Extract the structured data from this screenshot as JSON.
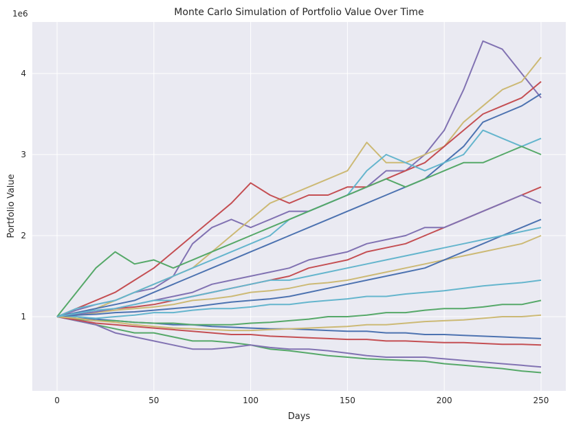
{
  "chart_data": {
    "type": "line",
    "title": "Monte Carlo Simulation of Portfolio Value Over Time",
    "xlabel": "Days",
    "ylabel": "Portfolio Value",
    "y_offset_label": "1e6",
    "xlim": [
      -12.8,
      262.8
    ],
    "ylim": [
      0.085,
      4.636
    ],
    "x_ticks": [
      0,
      50,
      100,
      150,
      200,
      250
    ],
    "y_ticks": [
      1,
      2,
      3,
      4
    ],
    "grid": true,
    "legend": "none",
    "background": "#eaeaf2",
    "palette": [
      "#4C72B0",
      "#55A868",
      "#C44E52",
      "#8172B2",
      "#CCB974",
      "#64B5CD"
    ],
    "x": [
      0,
      10,
      20,
      30,
      40,
      50,
      60,
      70,
      80,
      90,
      100,
      110,
      120,
      130,
      140,
      150,
      160,
      170,
      180,
      190,
      200,
      210,
      220,
      230,
      240,
      250
    ],
    "note_units": "values in millions (1e6)",
    "series": [
      {
        "color": "#8172B2",
        "values": [
          1.0,
          1.08,
          1.15,
          1.2,
          1.3,
          1.35,
          1.5,
          1.9,
          2.1,
          2.2,
          2.1,
          2.2,
          2.3,
          2.3,
          2.4,
          2.5,
          2.6,
          2.8,
          2.8,
          3.0,
          3.3,
          3.8,
          4.4,
          4.3,
          4.0,
          3.7
        ]
      },
      {
        "color": "#CCB974",
        "values": [
          1.0,
          1.05,
          1.1,
          1.2,
          1.3,
          1.4,
          1.5,
          1.6,
          1.8,
          2.0,
          2.2,
          2.4,
          2.5,
          2.6,
          2.7,
          2.8,
          3.15,
          2.9,
          2.9,
          3.0,
          3.1,
          3.4,
          3.6,
          3.8,
          3.9,
          4.2
        ]
      },
      {
        "color": "#C44E52",
        "values": [
          1.0,
          1.1,
          1.2,
          1.3,
          1.45,
          1.6,
          1.8,
          2.0,
          2.2,
          2.4,
          2.65,
          2.5,
          2.4,
          2.5,
          2.5,
          2.6,
          2.6,
          2.7,
          2.8,
          2.9,
          3.1,
          3.3,
          3.5,
          3.6,
          3.7,
          3.9
        ]
      },
      {
        "color": "#4C72B0",
        "values": [
          1.0,
          1.05,
          1.1,
          1.15,
          1.2,
          1.3,
          1.4,
          1.5,
          1.6,
          1.7,
          1.8,
          1.9,
          2.0,
          2.1,
          2.2,
          2.3,
          2.4,
          2.5,
          2.6,
          2.7,
          2.9,
          3.1,
          3.4,
          3.5,
          3.6,
          3.75
        ]
      },
      {
        "color": "#64B5CD",
        "values": [
          1.0,
          1.1,
          1.15,
          1.2,
          1.3,
          1.4,
          1.5,
          1.6,
          1.7,
          1.8,
          1.9,
          2.0,
          2.2,
          2.3,
          2.4,
          2.5,
          2.8,
          3.0,
          2.9,
          2.8,
          2.9,
          3.0,
          3.3,
          3.2,
          3.1,
          3.2
        ]
      },
      {
        "color": "#55A868",
        "values": [
          1.0,
          1.3,
          1.6,
          1.8,
          1.65,
          1.7,
          1.6,
          1.7,
          1.8,
          1.9,
          2.0,
          2.1,
          2.2,
          2.3,
          2.4,
          2.5,
          2.6,
          2.7,
          2.6,
          2.7,
          2.8,
          2.9,
          2.9,
          3.0,
          3.1,
          3.0
        ]
      },
      {
        "color": "#55A868",
        "values": [
          1.0,
          0.95,
          0.9,
          0.85,
          0.8,
          0.8,
          0.75,
          0.7,
          0.7,
          0.68,
          0.65,
          0.6,
          0.58,
          0.55,
          0.52,
          0.5,
          0.48,
          0.47,
          0.46,
          0.45,
          0.42,
          0.4,
          0.38,
          0.36,
          0.33,
          0.31
        ]
      },
      {
        "color": "#8172B2",
        "values": [
          1.0,
          0.95,
          0.9,
          0.8,
          0.75,
          0.7,
          0.65,
          0.6,
          0.6,
          0.62,
          0.65,
          0.62,
          0.6,
          0.6,
          0.58,
          0.55,
          0.52,
          0.5,
          0.5,
          0.5,
          0.48,
          0.46,
          0.44,
          0.42,
          0.4,
          0.38
        ]
      },
      {
        "color": "#C44E52",
        "values": [
          1.0,
          1.02,
          1.05,
          1.1,
          1.12,
          1.15,
          1.2,
          1.25,
          1.3,
          1.35,
          1.4,
          1.45,
          1.5,
          1.6,
          1.65,
          1.7,
          1.8,
          1.85,
          1.9,
          2.0,
          2.1,
          2.2,
          2.3,
          2.4,
          2.5,
          2.6
        ]
      },
      {
        "color": "#4C72B0",
        "values": [
          1.0,
          0.98,
          0.97,
          0.95,
          0.93,
          0.92,
          0.9,
          0.9,
          0.88,
          0.87,
          0.86,
          0.85,
          0.85,
          0.84,
          0.83,
          0.82,
          0.82,
          0.8,
          0.8,
          0.78,
          0.78,
          0.77,
          0.76,
          0.75,
          0.74,
          0.73
        ]
      },
      {
        "color": "#CCB974",
        "values": [
          1.0,
          1.02,
          1.05,
          1.08,
          1.1,
          1.12,
          1.15,
          1.2,
          1.22,
          1.25,
          1.3,
          1.32,
          1.35,
          1.4,
          1.42,
          1.45,
          1.5,
          1.55,
          1.6,
          1.65,
          1.7,
          1.75,
          1.8,
          1.85,
          1.9,
          2.0
        ]
      },
      {
        "color": "#64B5CD",
        "values": [
          1.0,
          1.0,
          0.98,
          1.0,
          1.02,
          1.05,
          1.05,
          1.08,
          1.1,
          1.1,
          1.12,
          1.15,
          1.15,
          1.18,
          1.2,
          1.22,
          1.25,
          1.25,
          1.28,
          1.3,
          1.32,
          1.35,
          1.38,
          1.4,
          1.42,
          1.45
        ]
      },
      {
        "color": "#8172B2",
        "values": [
          1.0,
          1.03,
          1.06,
          1.1,
          1.15,
          1.2,
          1.25,
          1.3,
          1.4,
          1.45,
          1.5,
          1.55,
          1.6,
          1.7,
          1.75,
          1.8,
          1.9,
          1.95,
          2.0,
          2.1,
          2.1,
          2.2,
          2.3,
          2.4,
          2.5,
          2.4
        ]
      },
      {
        "color": "#55A868",
        "values": [
          1.0,
          0.97,
          0.95,
          0.95,
          0.93,
          0.92,
          0.92,
          0.9,
          0.9,
          0.9,
          0.92,
          0.93,
          0.95,
          0.97,
          1.0,
          1.0,
          1.02,
          1.05,
          1.05,
          1.08,
          1.1,
          1.1,
          1.12,
          1.15,
          1.15,
          1.2
        ]
      },
      {
        "color": "#C44E52",
        "values": [
          1.0,
          0.96,
          0.92,
          0.9,
          0.88,
          0.86,
          0.84,
          0.82,
          0.8,
          0.78,
          0.78,
          0.76,
          0.75,
          0.74,
          0.73,
          0.72,
          0.72,
          0.7,
          0.7,
          0.69,
          0.68,
          0.68,
          0.67,
          0.66,
          0.66,
          0.65
        ]
      },
      {
        "color": "#4C72B0",
        "values": [
          1.0,
          1.02,
          1.03,
          1.05,
          1.06,
          1.08,
          1.1,
          1.12,
          1.15,
          1.18,
          1.2,
          1.22,
          1.25,
          1.3,
          1.35,
          1.4,
          1.45,
          1.5,
          1.55,
          1.6,
          1.7,
          1.8,
          1.9,
          2.0,
          2.1,
          2.2
        ]
      },
      {
        "color": "#CCB974",
        "values": [
          1.0,
          0.98,
          0.95,
          0.93,
          0.9,
          0.88,
          0.86,
          0.85,
          0.84,
          0.83,
          0.83,
          0.84,
          0.85,
          0.86,
          0.87,
          0.88,
          0.9,
          0.9,
          0.92,
          0.94,
          0.95,
          0.96,
          0.98,
          1.0,
          1.0,
          1.02
        ]
      },
      {
        "color": "#64B5CD",
        "values": [
          1.0,
          1.04,
          1.08,
          1.1,
          1.15,
          1.2,
          1.2,
          1.25,
          1.3,
          1.35,
          1.4,
          1.45,
          1.45,
          1.5,
          1.55,
          1.6,
          1.65,
          1.7,
          1.75,
          1.8,
          1.85,
          1.9,
          1.95,
          2.0,
          2.05,
          2.1
        ]
      }
    ]
  }
}
